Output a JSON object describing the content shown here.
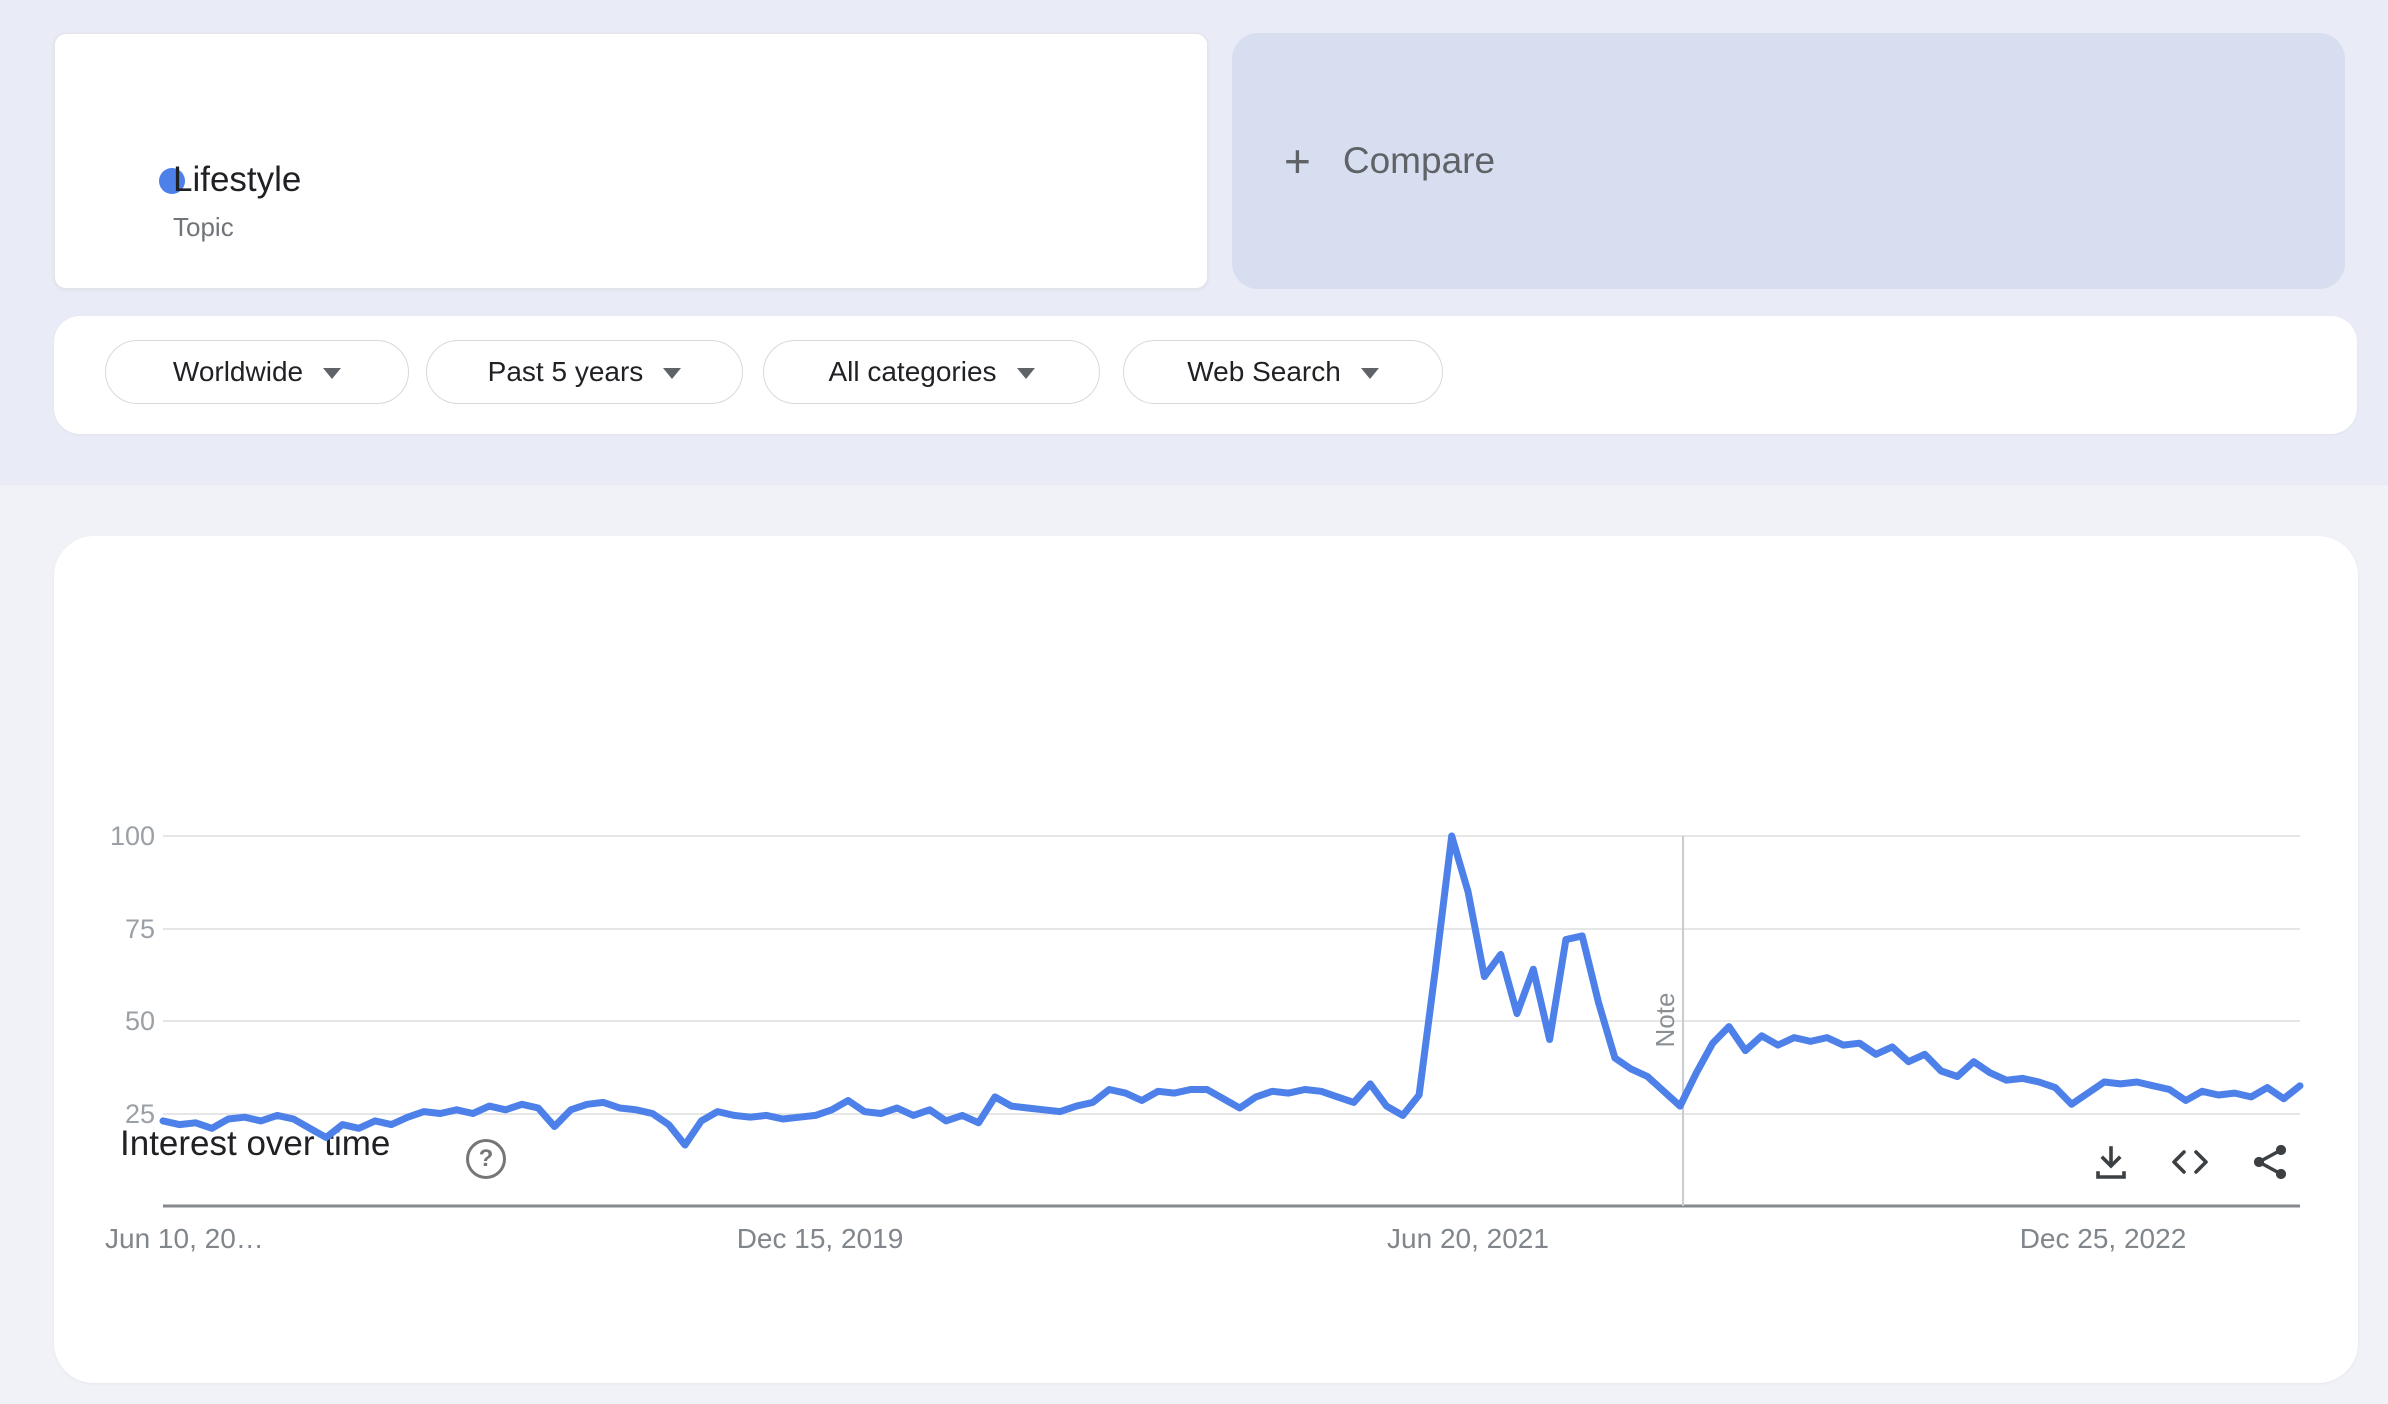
{
  "page": {
    "bg_top_color": "#e9ebf6",
    "bg_bottom_color": "#f1f2f8",
    "accent_blue": "#4d80e8"
  },
  "term_card": {
    "label": "Lifestyle",
    "sublabel": "Topic",
    "dot_color": "#4d80e8"
  },
  "compare_card": {
    "plus": "+",
    "label": "Compare",
    "bg_color": "#d7deef"
  },
  "filters": {
    "geo": {
      "label": "Worldwide"
    },
    "time": {
      "label": "Past 5 years"
    },
    "category": {
      "label": "All categories"
    },
    "property": {
      "label": "Web Search"
    }
  },
  "chart_section": {
    "title": "Interest over time",
    "help_glyph": "?"
  },
  "chart_data": {
    "type": "line",
    "title": "Interest over time",
    "series_name": "Lifestyle (Topic) — Worldwide, Past 5 years, Web Search",
    "x_ticks": [
      "Jun 10, 20…",
      "Dec 15, 2019",
      "Jun 20, 2021",
      "Dec 25, 2022"
    ],
    "y_ticks": [
      "100",
      "75",
      "50",
      "25"
    ],
    "ylim": [
      0,
      100
    ],
    "grid": true,
    "legend": "none",
    "note_label": "Note",
    "note_x_fraction": 0.7113,
    "line_color": "#4d80e8",
    "sampling": "approx. biweekly samples, Jun 2018 - Jun 2023",
    "values": [
      23,
      22,
      22.5,
      21,
      23.5,
      24,
      23,
      24.5,
      23.5,
      21,
      18.5,
      22,
      21,
      23,
      22,
      24,
      25.5,
      25,
      26,
      25,
      27,
      26,
      27.5,
      26.5,
      21.5,
      26,
      27.5,
      28,
      26.5,
      26,
      25,
      22,
      16.5,
      23,
      25.5,
      24.5,
      24,
      24.5,
      23.5,
      24,
      24.5,
      26,
      28.5,
      25.5,
      25,
      26.5,
      24.5,
      26,
      23,
      24.5,
      22.5,
      29.5,
      27,
      26.5,
      26,
      25.5,
      27,
      28,
      31.5,
      30.5,
      28.5,
      31,
      30.5,
      31.5,
      31.5,
      29,
      26.5,
      29.5,
      31,
      30.5,
      31.5,
      31,
      29.5,
      28,
      33,
      27,
      24.5,
      30,
      64,
      100,
      85,
      62,
      68,
      52,
      64,
      45,
      72,
      73,
      55,
      40,
      37,
      35,
      31,
      27,
      36,
      44,
      48.5,
      42,
      46,
      43.5,
      45.5,
      44.5,
      45.5,
      43.5,
      44,
      41,
      43,
      39,
      41,
      36.5,
      35,
      39,
      36,
      34,
      34.5,
      33.5,
      32,
      27.5,
      30.5,
      33.5,
      33,
      33.5,
      32.5,
      31.5,
      28.5,
      31,
      30,
      30.5,
      29.5,
      32,
      29,
      32.5
    ]
  }
}
